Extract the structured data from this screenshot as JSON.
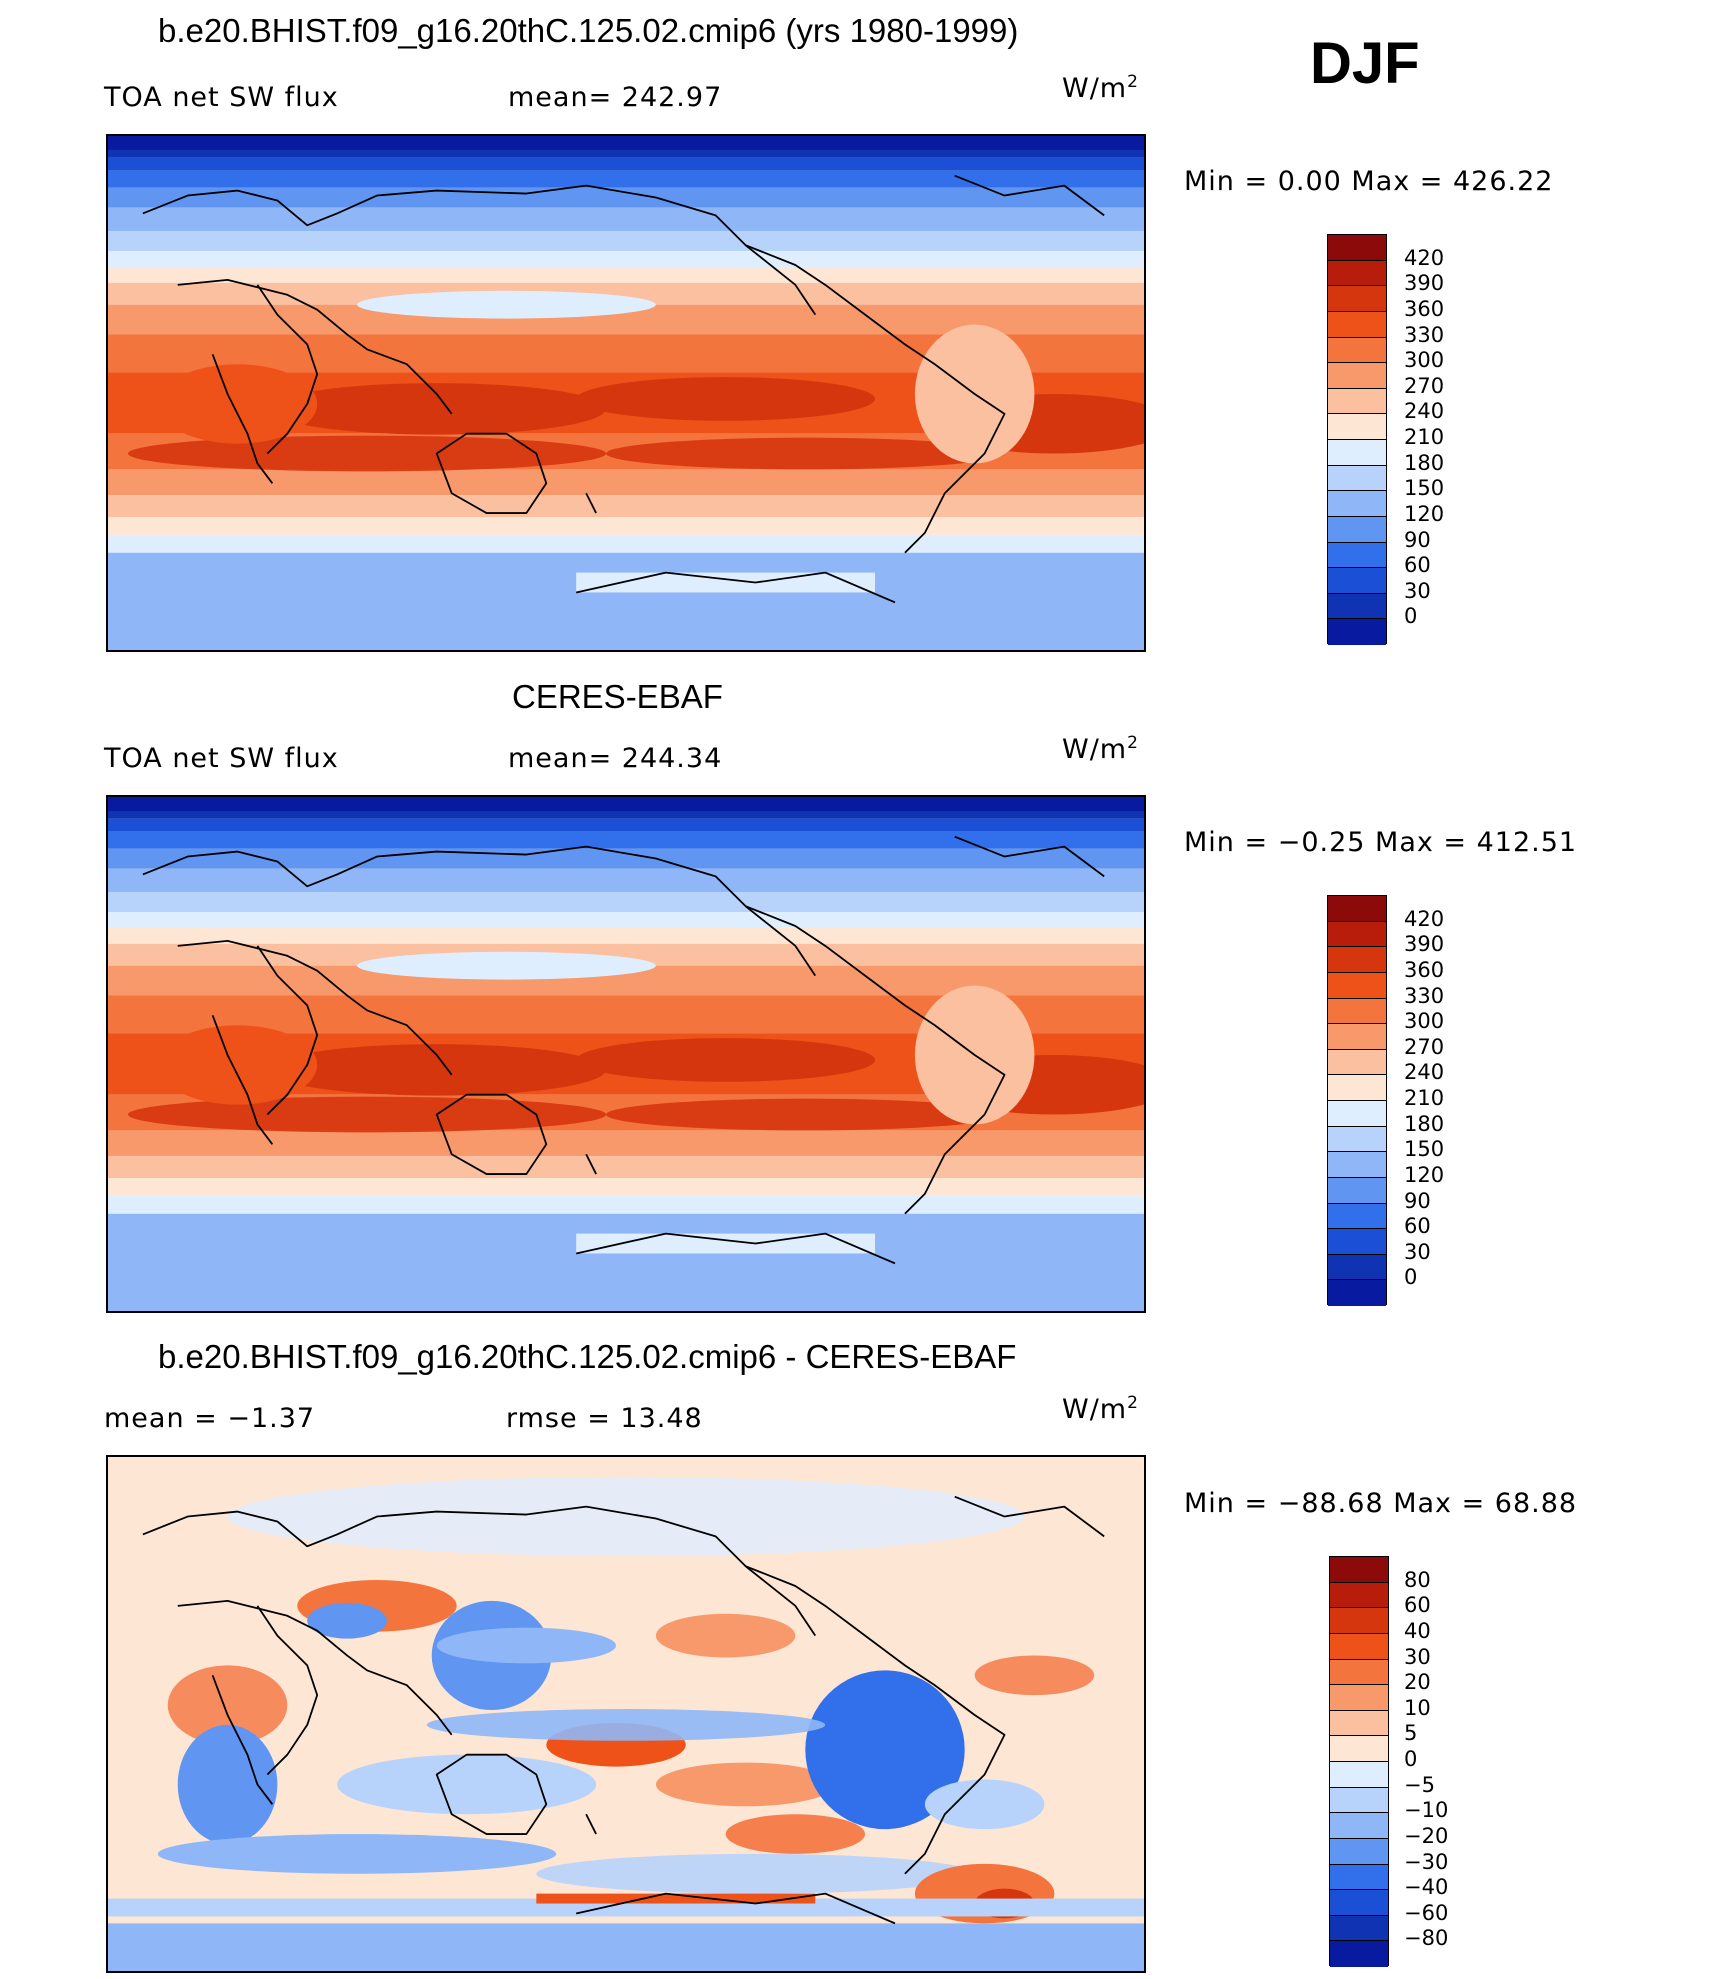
{
  "season": "DJF",
  "panels": [
    {
      "title": "b.e20.BHIST.f09_g16.20thC.125.02.cmip6 (yrs 1980-1999)",
      "left_label": "TOA net SW flux",
      "mid_label": "mean=  242.97",
      "units": "W/m",
      "units_exp": "2",
      "minmax": "Min  =     0.00  Max  =  426.22",
      "map_kind": "absolute",
      "colorbar_levels": [
        "420",
        "390",
        "360",
        "330",
        "300",
        "270",
        "240",
        "210",
        "180",
        "150",
        "120",
        "90",
        "60",
        "30",
        "0"
      ],
      "colorbar_colors": [
        "#8c0a0a",
        "#b81c0a",
        "#d6360e",
        "#ef5218",
        "#f4743e",
        "#f7996a",
        "#fac0a0",
        "#fde6d4",
        "#dfeeff",
        "#b7d3fc",
        "#8fb7f7",
        "#6096f1",
        "#3170ea",
        "#1a4fd6",
        "#0f33b2",
        "#081aa0"
      ]
    },
    {
      "title": "CERES-EBAF",
      "left_label": "TOA net SW flux",
      "mid_label": "mean=  244.34",
      "units": "W/m",
      "units_exp": "2",
      "minmax": "Min  =   −0.25  Max  =  412.51",
      "map_kind": "absolute",
      "colorbar_levels": [
        "420",
        "390",
        "360",
        "330",
        "300",
        "270",
        "240",
        "210",
        "180",
        "150",
        "120",
        "90",
        "60",
        "30",
        "0"
      ],
      "colorbar_colors": [
        "#8c0a0a",
        "#b81c0a",
        "#d6360e",
        "#ef5218",
        "#f4743e",
        "#f7996a",
        "#fac0a0",
        "#fde6d4",
        "#dfeeff",
        "#b7d3fc",
        "#8fb7f7",
        "#6096f1",
        "#3170ea",
        "#1a4fd6",
        "#0f33b2",
        "#081aa0"
      ]
    },
    {
      "title": "b.e20.BHIST.f09_g16.20thC.125.02.cmip6 - CERES-EBAF",
      "left_label": "mean  =    −1.37",
      "mid_label": "rmse  =    13.48",
      "units": "W/m",
      "units_exp": "2",
      "minmax": "Min  = −88.68  Max  =    68.88",
      "map_kind": "difference",
      "colorbar_levels": [
        "80",
        "60",
        "40",
        "30",
        "20",
        "10",
        "5",
        "0",
        "−5",
        "−10",
        "−20",
        "−30",
        "−40",
        "−60",
        "−80"
      ],
      "colorbar_colors": [
        "#8c0a0a",
        "#b81c0a",
        "#d6360e",
        "#ef5218",
        "#f4743e",
        "#f7996a",
        "#fac0a0",
        "#fde6d4",
        "#dfeeff",
        "#b7d3fc",
        "#8fb7f7",
        "#6096f1",
        "#3170ea",
        "#1a4fd6",
        "#0f33b2",
        "#081aa0"
      ]
    }
  ]
}
